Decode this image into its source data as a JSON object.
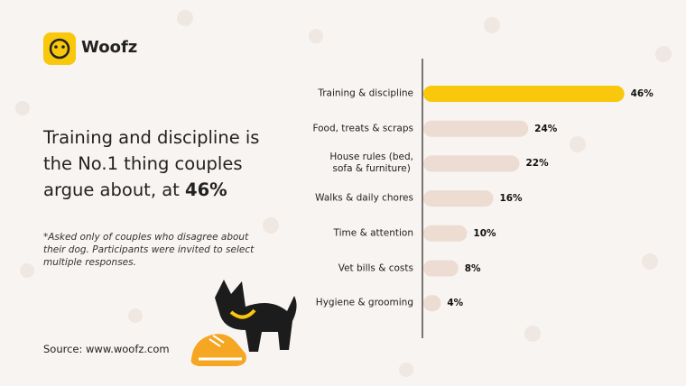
{
  "brand": "Woofz",
  "headline": "Training and discipline is the No.1 thing couples argue about, at",
  "headline_highlight": "46%",
  "footnote": "*Asked only of couples who disagree about their dog. Participants were invited to select multiple responses.",
  "source": "Source: www.woofz.com",
  "chart_data": {
    "type": "hbar",
    "categories": [
      "Training & discipline",
      "Food, treats & scraps",
      "House rules (bed,\nsofa & furniture)",
      "Walks & daily chores",
      "Time & attention",
      "Vet bills & costs",
      "Hygiene & grooming"
    ],
    "values": [
      46,
      24,
      22,
      16,
      10,
      8,
      4
    ],
    "value_labels": [
      "46%",
      "24%",
      "22%",
      "16%",
      "10%",
      "8%",
      "4%"
    ],
    "colors": [
      "#f9c70c",
      "#ecdcd2",
      "#ecdcd2",
      "#ecdcd2",
      "#ecdcd2",
      "#ecdcd2",
      "#ecdcd2"
    ],
    "xlim": [
      0,
      50
    ]
  }
}
